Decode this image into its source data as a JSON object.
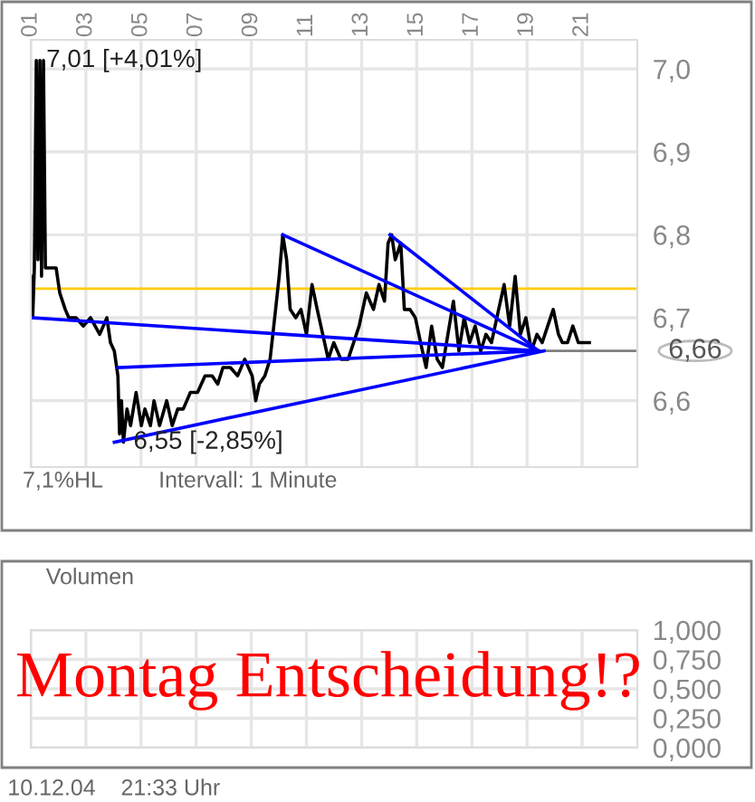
{
  "chart_data": [
    {
      "type": "line",
      "xlim": [
        1,
        23
      ],
      "ylim": [
        6.52,
        7.035
      ],
      "xticks": [
        {
          "value": 1,
          "label": "01"
        },
        {
          "value": 3,
          "label": "03"
        },
        {
          "value": 5,
          "label": "05"
        },
        {
          "value": 7,
          "label": "07"
        },
        {
          "value": 9,
          "label": "09"
        },
        {
          "value": 11,
          "label": "11"
        },
        {
          "value": 13,
          "label": "13"
        },
        {
          "value": 15,
          "label": "15"
        },
        {
          "value": 17,
          "label": "17"
        },
        {
          "value": 19,
          "label": "19"
        },
        {
          "value": 21,
          "label": "21"
        }
      ],
      "yticks": [
        {
          "value": 6.6,
          "label": "6,6"
        },
        {
          "value": 6.7,
          "label": "6,7"
        },
        {
          "value": 6.8,
          "label": "6,8"
        },
        {
          "value": 6.9,
          "label": "6,9"
        },
        {
          "value": 7.0,
          "label": "7,0"
        }
      ],
      "grid": true,
      "legend": false,
      "series": [
        {
          "color": "#000000",
          "x": [
            1.0,
            1.07,
            1.13,
            1.2,
            1.26,
            1.33,
            1.39,
            1.46,
            1.53,
            1.92,
            2.05,
            2.25,
            2.38,
            2.64,
            2.91,
            3.17,
            3.5,
            3.76,
            3.89,
            4.03,
            4.16,
            4.22,
            4.29,
            4.36,
            4.49,
            4.62,
            4.82,
            5.01,
            5.14,
            5.34,
            5.47,
            5.67,
            5.93,
            6.13,
            6.33,
            6.53,
            6.79,
            7.05,
            7.32,
            7.58,
            7.78,
            7.97,
            8.24,
            8.5,
            8.76,
            9.03,
            9.16,
            9.29,
            9.49,
            9.68,
            9.88,
            10.01,
            10.14,
            10.28,
            10.41,
            10.61,
            10.8,
            11.0,
            11.2,
            11.39,
            11.59,
            11.79,
            11.99,
            12.25,
            12.51,
            12.71,
            12.91,
            13.17,
            13.43,
            13.63,
            13.83,
            13.96,
            14.09,
            14.22,
            14.42,
            14.55,
            14.75,
            14.95,
            15.14,
            15.34,
            15.54,
            15.74,
            15.93,
            16.13,
            16.33,
            16.53,
            16.72,
            16.92,
            17.12,
            17.32,
            17.51,
            17.71,
            17.97,
            18.17,
            18.37,
            18.57,
            18.76,
            18.96,
            19.16,
            19.36,
            19.55,
            19.75,
            19.95,
            20.14,
            20.28,
            20.47,
            20.66,
            20.86,
            21.26
          ],
          "values": [
            6.75,
            6.7,
            6.76,
            7.01,
            6.77,
            7.01,
            6.75,
            7.01,
            6.76,
            6.76,
            6.73,
            6.71,
            6.7,
            6.7,
            6.69,
            6.7,
            6.68,
            6.7,
            6.67,
            6.66,
            6.63,
            6.56,
            6.6,
            6.55,
            6.59,
            6.57,
            6.61,
            6.57,
            6.59,
            6.57,
            6.6,
            6.57,
            6.6,
            6.57,
            6.59,
            6.59,
            6.61,
            6.61,
            6.63,
            6.63,
            6.62,
            6.64,
            6.64,
            6.63,
            6.65,
            6.63,
            6.6,
            6.62,
            6.63,
            6.65,
            6.71,
            6.75,
            6.8,
            6.77,
            6.71,
            6.7,
            6.71,
            6.68,
            6.74,
            6.71,
            6.68,
            6.65,
            6.67,
            6.65,
            6.65,
            6.67,
            6.69,
            6.73,
            6.71,
            6.74,
            6.72,
            6.79,
            6.8,
            6.77,
            6.79,
            6.71,
            6.71,
            6.7,
            6.67,
            6.64,
            6.69,
            6.65,
            6.64,
            6.68,
            6.72,
            6.66,
            6.7,
            6.67,
            6.69,
            6.66,
            6.68,
            6.67,
            6.71,
            6.74,
            6.69,
            6.75,
            6.68,
            6.7,
            6.66,
            6.68,
            6.67,
            6.69,
            6.71,
            6.68,
            6.67,
            6.67,
            6.69,
            6.67,
            6.67
          ]
        },
        {
          "color": "#0000ff",
          "x": [
            4.03,
            19.62
          ],
          "values": [
            6.55,
            6.66
          ]
        },
        {
          "color": "#0000ff",
          "x": [
            14.03,
            19.42
          ],
          "values": [
            6.8,
            6.66
          ]
        },
        {
          "color": "#0000ff",
          "x": [
            10.14,
            19.42
          ],
          "values": [
            6.8,
            6.66
          ]
        },
        {
          "color": "#0000ff",
          "x": [
            1.07,
            19.42
          ],
          "values": [
            6.7,
            6.66
          ]
        },
        {
          "color": "#0000ff",
          "x": [
            4.16,
            19.42
          ],
          "values": [
            6.64,
            6.66
          ]
        }
      ],
      "ref_lines": [
        {
          "axis": "y",
          "value": 6.735,
          "color": "#ffcc00"
        },
        {
          "axis": "y",
          "value": 6.66,
          "label": "6,66",
          "color": "#808080"
        }
      ],
      "annotations": [
        {
          "text": "7,01 [+4,01%]",
          "x": 1.2,
          "y": 7.01
        },
        {
          "text": "6,55 [-2,85%]",
          "x": 4.36,
          "y": 6.55
        },
        "7,1%HL",
        "Intervall: 1 Minute"
      ]
    },
    {
      "type": "line",
      "title": "Volumen",
      "xlim": [
        1,
        23
      ],
      "ylim": [
        0,
        1
      ],
      "xticks": [
        {
          "value": 1,
          "label": null
        },
        {
          "value": 3,
          "label": null
        },
        {
          "value": 5,
          "label": null
        },
        {
          "value": 7,
          "label": null
        },
        {
          "value": 9,
          "label": null
        },
        {
          "value": 11,
          "label": null
        },
        {
          "value": 13,
          "label": null
        },
        {
          "value": 15,
          "label": null
        },
        {
          "value": 17,
          "label": null
        },
        {
          "value": 19,
          "label": null
        },
        {
          "value": 21,
          "label": null
        }
      ],
      "yticks": [
        {
          "value": 0,
          "label": "0,000"
        },
        {
          "value": 0.25,
          "label": "0,250"
        },
        {
          "value": 0.5,
          "label": "0,500"
        },
        {
          "value": 0.75,
          "label": "0,750"
        },
        {
          "value": 1,
          "label": "1,000"
        }
      ],
      "grid": true,
      "tick_labels": "y",
      "legend": false,
      "annotations": [
        "Montag Entscheidung!?",
        "10.12.04    21:33 Uhr"
      ]
    }
  ]
}
